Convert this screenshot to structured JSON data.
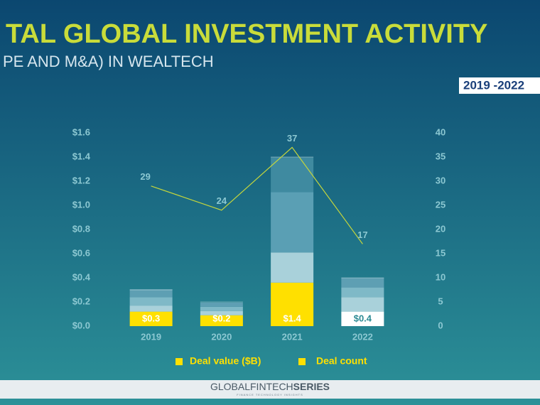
{
  "chart_data": {
    "type": "bar",
    "title": "TAL GLOBAL INVESTMENT ACTIVITY",
    "subtitle": "PE AND M&A) IN WEALTECH",
    "badge": "2019 -2022",
    "categories": [
      "2019",
      "2020",
      "2021",
      "2022"
    ],
    "stack": [
      {
        "colors": [
          "#ffe000",
          "#ffe000",
          "#ffe000",
          "#ffffff"
        ],
        "values": [
          0.12,
          0.09,
          0.36,
          0.12
        ]
      },
      {
        "colors": [
          "#a9d1da",
          "#a9d1da",
          "#a9d1da",
          "#a9d1da"
        ],
        "values": [
          0.05,
          0.035,
          0.25,
          0.12
        ]
      },
      {
        "colors": [
          "#7fb9c7",
          "#7fb9c7",
          "#5a9fb4",
          "#7fb9c7"
        ],
        "values": [
          0.07,
          0.035,
          0.5,
          0.08
        ]
      },
      {
        "colors": [
          "#5e9fb3",
          "#5e9fb3",
          "#3f8aa0",
          "#5e9fb3"
        ],
        "values": [
          0.065,
          0.035,
          0.29,
          0.08
        ]
      }
    ],
    "series": [
      {
        "name": "Deal value ($B)",
        "color": "#ffe000",
        "values": [
          0.3,
          0.2,
          1.4,
          0.4
        ],
        "value_labels": [
          "$0.3",
          "$0.2",
          "$1.4",
          "$0.4"
        ]
      },
      {
        "name": "Deal count",
        "color": "#ffe000",
        "line_color": "#c5d63c",
        "axis": "y2",
        "values": [
          29,
          24,
          37,
          17
        ]
      }
    ],
    "ylim": [
      0,
      1.6
    ],
    "yticks": [
      {
        "value": 0,
        "label": "$0.0"
      },
      {
        "value": 0.2,
        "label": "$0.2"
      },
      {
        "value": 0.4,
        "label": "$0.4"
      },
      {
        "value": 0.6,
        "label": "$0.6"
      },
      {
        "value": 0.8,
        "label": "$0.8"
      },
      {
        "value": 1.0,
        "label": "$1.0"
      },
      {
        "value": 1.2,
        "label": "$1.2"
      },
      {
        "value": 1.4,
        "label": "$1.4"
      },
      {
        "value": 1.6,
        "label": "$1.6"
      }
    ],
    "y2lim": [
      0,
      40
    ],
    "y2ticks": [
      0,
      5,
      10,
      15,
      20,
      25,
      30,
      35,
      40
    ]
  },
  "footer": {
    "brand": "GLOBALFINTECH",
    "brand_bold": "SERIES",
    "tagline": "FINANCE TECHNOLOGY INSIGHTS"
  }
}
